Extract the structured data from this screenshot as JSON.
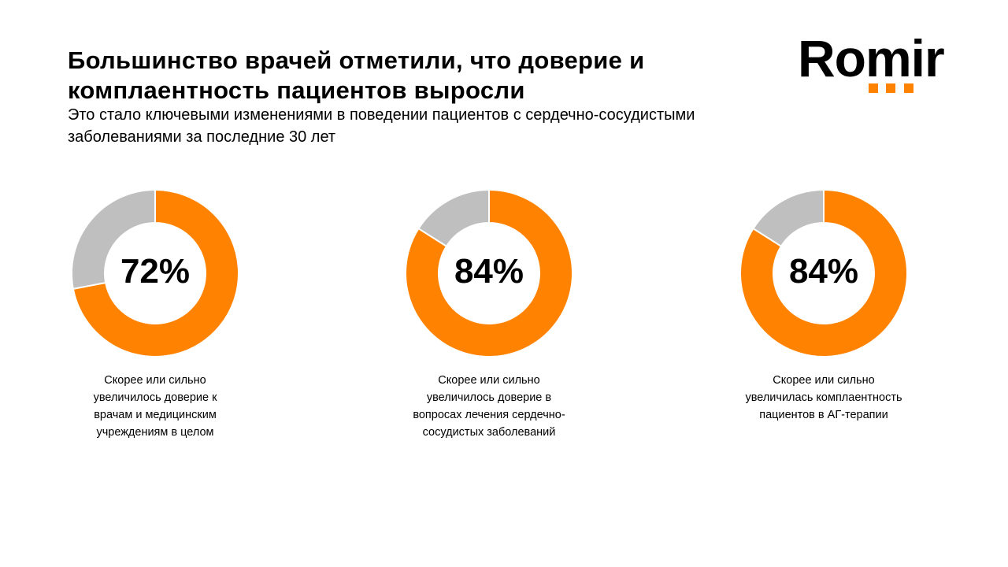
{
  "header": {
    "title_lines": [
      "Большинство врачей отметили, что доверие и",
      "комплаентность пациентов выросли"
    ],
    "subtitle_lines": [
      "Это стало ключевыми изменениями в поведении пациентов с сердечно-сосудистыми",
      "заболеваниями за последние 30 лет"
    ]
  },
  "logo": {
    "text": "Romir",
    "accent_color": "#FF8300"
  },
  "colors": {
    "primary": "#FF8300",
    "remainder": "#BFBFBF"
  },
  "chart_data": [
    {
      "type": "pie",
      "variant": "donut",
      "values": [
        72,
        28
      ],
      "center_label": "72%",
      "caption_lines": [
        "Скорее или сильно",
        "увеличилось доверие к",
        "врачам и медицинским",
        "учреждениям в целом"
      ]
    },
    {
      "type": "pie",
      "variant": "donut",
      "values": [
        84,
        16
      ],
      "center_label": "84%",
      "caption_lines": [
        "Скорее или сильно",
        "увеличилось доверие в",
        "вопросах лечения сердечно-",
        "сосудистых заболеваний"
      ]
    },
    {
      "type": "pie",
      "variant": "donut",
      "values": [
        84,
        16
      ],
      "center_label": "84%",
      "caption_lines": [
        "Скорее или сильно",
        "увеличилась комплаентность",
        "пациентов в АГ-терапии"
      ]
    }
  ]
}
